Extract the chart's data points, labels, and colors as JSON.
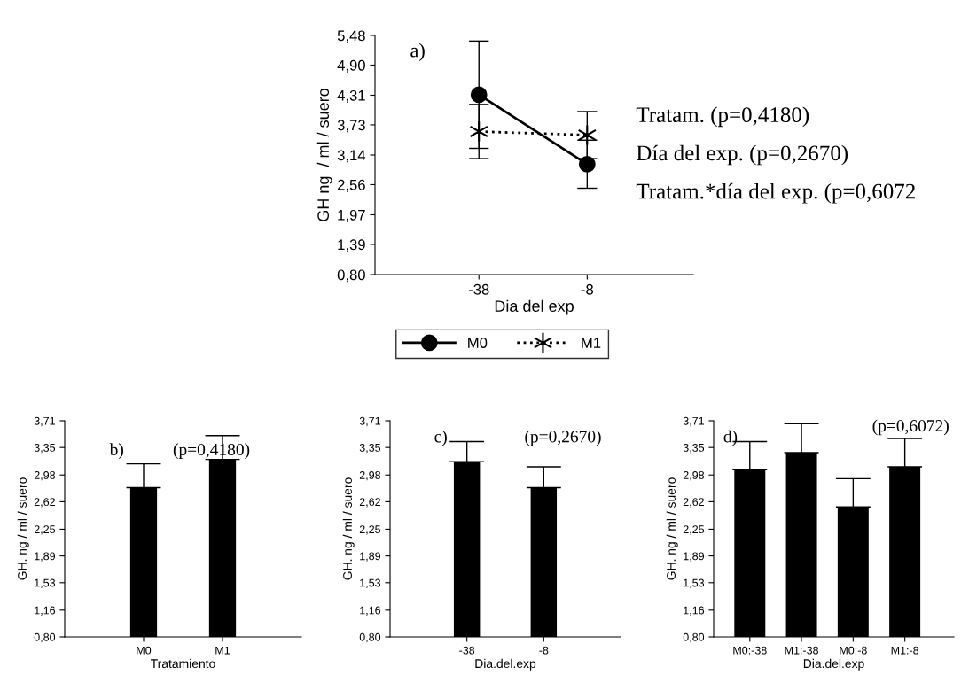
{
  "chart_data": [
    {
      "type": "line",
      "xlabel": "Dia del exp",
      "ylabel": "GH ng  / ml / suero",
      "categories": [
        "-38",
        "-8"
      ],
      "series": [
        {
          "name": "M0",
          "color": "#000000",
          "values": [
            4.32,
            2.96
          ],
          "errors": [
            1.05,
            0.47
          ],
          "marker": "circle",
          "line_style": "solid"
        },
        {
          "name": "M1",
          "color": "#000000",
          "values": [
            3.6,
            3.53
          ],
          "errors": [
            0.53,
            0.46
          ],
          "marker": "cross",
          "line_style": "dotted"
        }
      ],
      "ylim": [
        0.8,
        5.48
      ],
      "yticks": [
        {
          "value": 0.8,
          "label": "0,80"
        },
        {
          "value": 1.39,
          "label": "1,39"
        },
        {
          "value": 1.97,
          "label": "1,97"
        },
        {
          "value": 2.56,
          "label": "2,56"
        },
        {
          "value": 3.14,
          "label": "3,14"
        },
        {
          "value": 3.73,
          "label": "3,73"
        },
        {
          "value": 4.31,
          "label": "4,31"
        },
        {
          "value": 4.9,
          "label": "4,90"
        },
        {
          "value": 5.48,
          "label": "5,48"
        }
      ],
      "legend": "bottom",
      "grid": false,
      "annotations": [
        "a)",
        "Tratam. (p=0,4180)",
        "Día del exp. (p=0,2670)",
        "Tratam.*día del exp. (p=0,6072"
      ]
    },
    {
      "type": "bar",
      "xlabel": "Tratamiento",
      "ylabel": "GH. ng / ml / suero",
      "categories": [
        "M0",
        "M1"
      ],
      "values": [
        2.81,
        3.19
      ],
      "errors": [
        [
          2.81,
          3.13
        ],
        [
          3.19,
          3.51
        ]
      ],
      "colors": [
        "#000000",
        "#000000"
      ],
      "ylim": [
        0.8,
        3.71
      ],
      "yticks": [
        {
          "value": 0.8,
          "label": "0,80"
        },
        {
          "value": 1.16,
          "label": "1,16"
        },
        {
          "value": 1.53,
          "label": "1,53"
        },
        {
          "value": 1.89,
          "label": "1,89"
        },
        {
          "value": 2.25,
          "label": "2,25"
        },
        {
          "value": 2.62,
          "label": "2,62"
        },
        {
          "value": 2.98,
          "label": "2,98"
        },
        {
          "value": 3.35,
          "label": "3,35"
        },
        {
          "value": 3.71,
          "label": "3,71"
        }
      ],
      "grid": false,
      "annotations": [
        "b)",
        "(p=0,4180)"
      ]
    },
    {
      "type": "bar",
      "xlabel": "Dia.del.exp",
      "ylabel": "GH. ng / ml / suero",
      "categories": [
        "-38",
        "-8"
      ],
      "values": [
        3.16,
        2.81
      ],
      "errors": [
        [
          3.16,
          3.43
        ],
        [
          2.81,
          3.09
        ]
      ],
      "colors": [
        "#000000",
        "#000000"
      ],
      "ylim": [
        0.8,
        3.71
      ],
      "yticks": [
        {
          "value": 0.8,
          "label": "0,80"
        },
        {
          "value": 1.16,
          "label": "1,16"
        },
        {
          "value": 1.53,
          "label": "1,53"
        },
        {
          "value": 1.89,
          "label": "1,89"
        },
        {
          "value": 2.25,
          "label": "2,25"
        },
        {
          "value": 2.62,
          "label": "2,62"
        },
        {
          "value": 2.98,
          "label": "2,98"
        },
        {
          "value": 3.35,
          "label": "3,35"
        },
        {
          "value": 3.71,
          "label": "3,71"
        }
      ],
      "grid": false,
      "annotations": [
        "c)",
        "(p=0,2670)"
      ]
    },
    {
      "type": "bar",
      "xlabel": "Dia.del.exp",
      "ylabel": "GH. ng / ml / suero",
      "categories": [
        "M0:-38",
        "M1:-38",
        "M0:-8",
        "M1:-8"
      ],
      "values": [
        3.05,
        3.28,
        2.55,
        3.09
      ],
      "errors": [
        [
          3.05,
          3.43
        ],
        [
          3.28,
          3.67
        ],
        [
          2.55,
          2.93
        ],
        [
          3.09,
          3.47
        ]
      ],
      "colors": [
        "#000000",
        "#000000",
        "#000000",
        "#000000"
      ],
      "ylim": [
        0.8,
        3.71
      ],
      "yticks": [
        {
          "value": 0.8,
          "label": "0,80"
        },
        {
          "value": 1.16,
          "label": "1,16"
        },
        {
          "value": 1.53,
          "label": "1,53"
        },
        {
          "value": 1.89,
          "label": "1,89"
        },
        {
          "value": 2.25,
          "label": "2,25"
        },
        {
          "value": 2.62,
          "label": "2,62"
        },
        {
          "value": 2.98,
          "label": "2,98"
        },
        {
          "value": 3.35,
          "label": "3,35"
        },
        {
          "value": 3.71,
          "label": "3,71"
        }
      ],
      "grid": false,
      "annotations": [
        "d)",
        "(p=0,6072)"
      ]
    }
  ]
}
